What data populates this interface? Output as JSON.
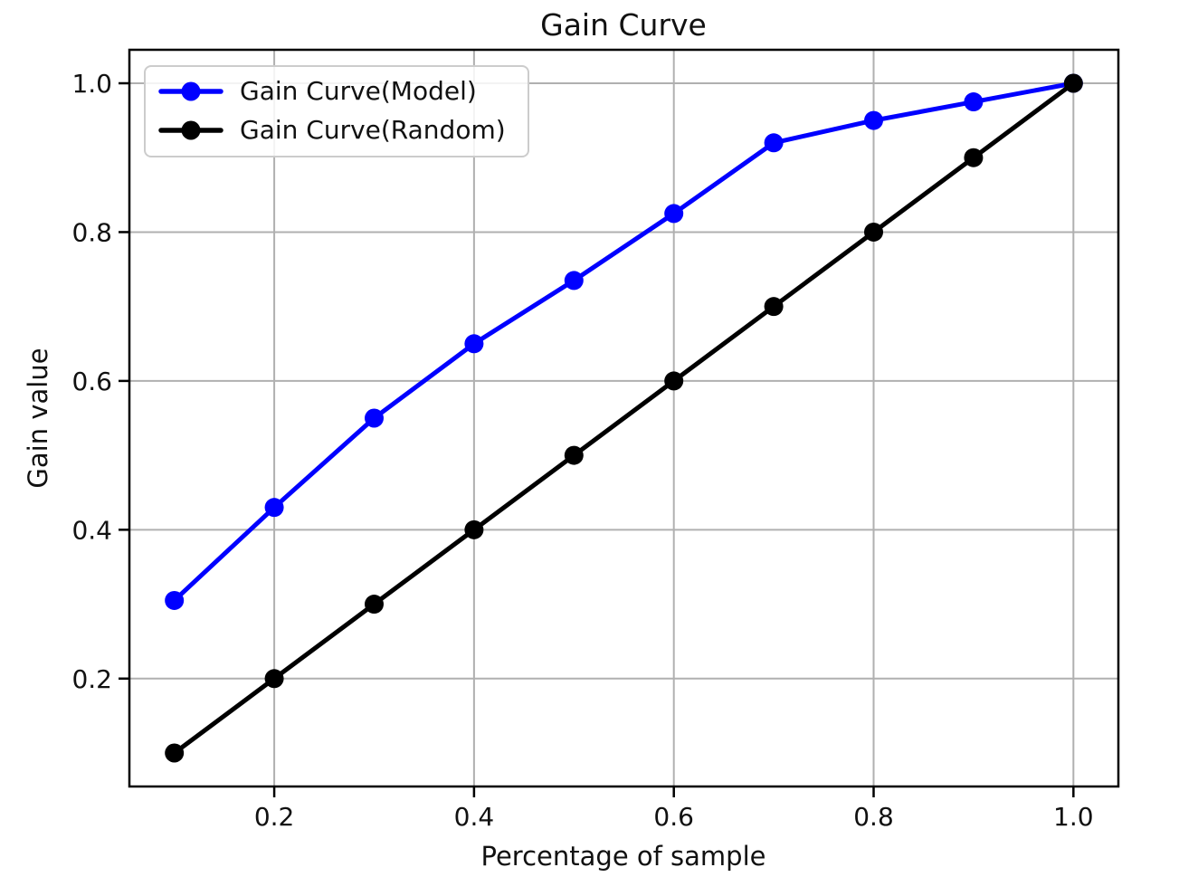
{
  "chart_data": {
    "type": "line",
    "title": "Gain Curve",
    "xlabel": "Percentage of sample",
    "ylabel": "Gain value",
    "x": [
      0.1,
      0.2,
      0.3,
      0.4,
      0.5,
      0.6,
      0.7,
      0.8,
      0.9,
      1.0
    ],
    "series": [
      {
        "name": "Gain Curve(Model)",
        "color": "#0000ff",
        "marker": "circle",
        "values": [
          0.305,
          0.43,
          0.55,
          0.65,
          0.735,
          0.825,
          0.92,
          0.95,
          0.975,
          1.0
        ]
      },
      {
        "name": "Gain Curve(Random)",
        "color": "#000000",
        "marker": "circle",
        "values": [
          0.1,
          0.2,
          0.3,
          0.4,
          0.5,
          0.6,
          0.7,
          0.8,
          0.9,
          1.0
        ]
      }
    ],
    "xticks": [
      0.2,
      0.4,
      0.6,
      0.8,
      1.0
    ],
    "yticks": [
      0.2,
      0.4,
      0.6,
      0.8,
      1.0
    ],
    "xlim": [
      0.055,
      1.045
    ],
    "ylim": [
      0.055,
      1.045
    ],
    "grid": true,
    "grid_color": "#b0b0b0",
    "spine_color": "#000000",
    "background": "#ffffff",
    "legend_position": "upper left"
  }
}
